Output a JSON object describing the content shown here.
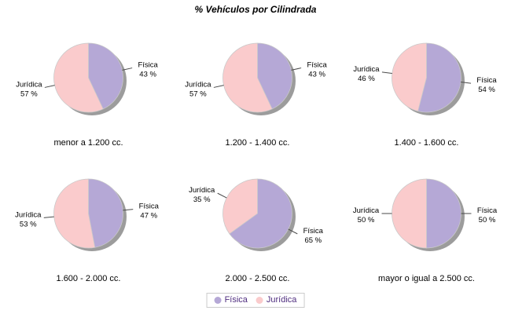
{
  "title": "% Vehículos por Cilindrada",
  "colors": {
    "background": "#FFFFFF",
    "shadow": "#9C9C9C",
    "slice_outline": "#C9C9C9",
    "leader_line": "#4A4A4A",
    "slice_label_text": "#000000",
    "category_label_text": "#000000",
    "title_text": "#000000",
    "legend_text": "#4F2D7F",
    "legend_border": "#CCCCCC"
  },
  "legend": {
    "items": [
      {
        "label": "Física",
        "color": "#B5A8D6"
      },
      {
        "label": "Jurídica",
        "color": "#FACBCC"
      }
    ]
  },
  "chart_data": [
    {
      "type": "pie",
      "category": "menor a 1.200 cc.",
      "unit": "%",
      "slices": [
        {
          "label": "Física",
          "value": 43,
          "value_text": "43 %"
        },
        {
          "label": "Jurídica",
          "value": 57,
          "value_text": "57 %"
        }
      ]
    },
    {
      "type": "pie",
      "category": "1.200 - 1.400 cc.",
      "unit": "%",
      "slices": [
        {
          "label": "Física",
          "value": 43,
          "value_text": "43 %"
        },
        {
          "label": "Jurídica",
          "value": 57,
          "value_text": "57 %"
        }
      ]
    },
    {
      "type": "pie",
      "category": "1.400 - 1.600 cc.",
      "unit": "%",
      "slices": [
        {
          "label": "Física",
          "value": 54,
          "value_text": "54 %"
        },
        {
          "label": "Jurídica",
          "value": 46,
          "value_text": "46 %"
        }
      ]
    },
    {
      "type": "pie",
      "category": "1.600 - 2.000 cc.",
      "unit": "%",
      "slices": [
        {
          "label": "Física",
          "value": 47,
          "value_text": "47 %"
        },
        {
          "label": "Jurídica",
          "value": 53,
          "value_text": "53 %"
        }
      ]
    },
    {
      "type": "pie",
      "category": "2.000 - 2.500 cc.",
      "unit": "%",
      "slices": [
        {
          "label": "Física",
          "value": 65,
          "value_text": "65 %"
        },
        {
          "label": "Jurídica",
          "value": 35,
          "value_text": "35 %"
        }
      ]
    },
    {
      "type": "pie",
      "category": "mayor o igual a 2.500 cc.",
      "unit": "%",
      "slices": [
        {
          "label": "Física",
          "value": 50,
          "value_text": "50 %"
        },
        {
          "label": "Jurídica",
          "value": 50,
          "value_text": "50 %"
        }
      ]
    }
  ]
}
